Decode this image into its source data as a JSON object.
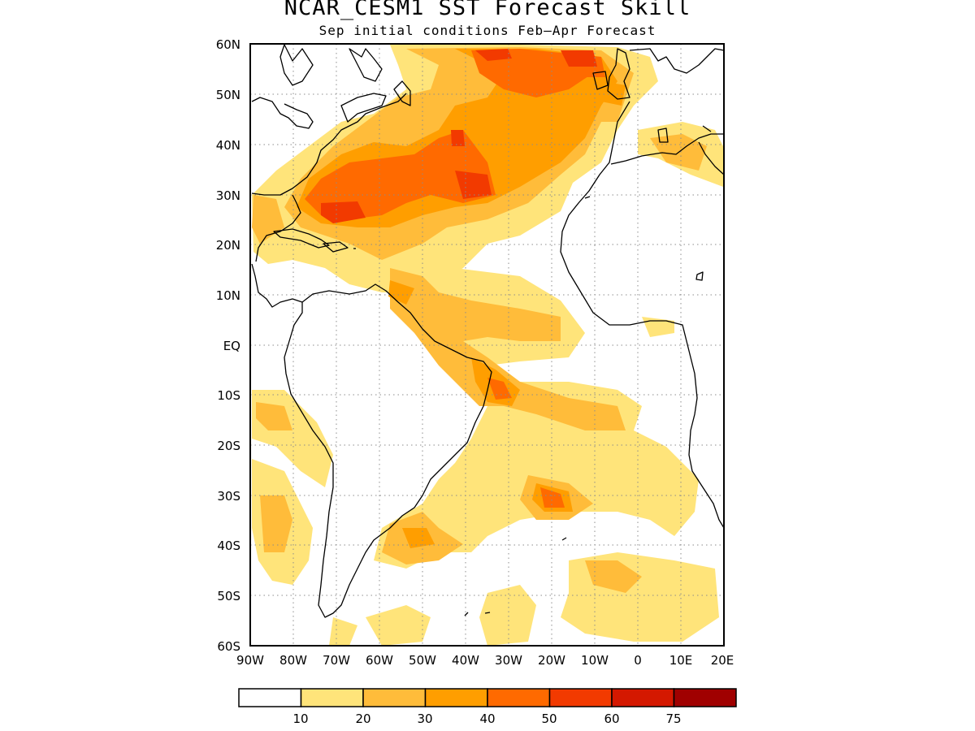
{
  "title": "NCAR_CESM1 SST Forecast Skill",
  "subtitle": "Sep initial conditions  Feb–Apr Forecast",
  "map": {
    "region": "Atlantic Ocean",
    "lon_range": [
      -90,
      20
    ],
    "lat_range": [
      -60,
      60
    ],
    "lat_ticks": [
      "60N",
      "50N",
      "40N",
      "30N",
      "20N",
      "10N",
      "EQ",
      "10S",
      "20S",
      "30S",
      "40S",
      "50S",
      "60S"
    ],
    "lon_ticks": [
      "90W",
      "80W",
      "70W",
      "60W",
      "50W",
      "40W",
      "30W",
      "20W",
      "10W",
      "0",
      "10E",
      "20E"
    ],
    "gridlines": "dotted"
  },
  "colorbar": {
    "labels": [
      "10",
      "20",
      "30",
      "40",
      "50",
      "60",
      "75"
    ],
    "colors": [
      "#ffffff",
      "#ffe47a",
      "#ffbc3a",
      "#ff9e00",
      "#ff6a00",
      "#f23a00",
      "#d41800",
      "#a00000"
    ]
  }
}
